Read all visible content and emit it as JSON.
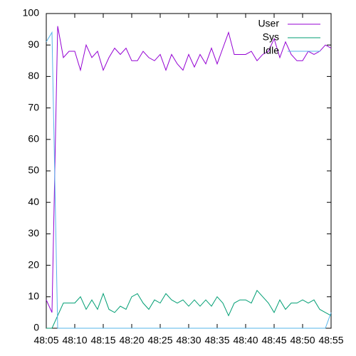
{
  "chart_data": {
    "type": "line",
    "x": [
      5,
      6,
      7,
      8,
      9,
      10,
      11,
      12,
      13,
      14,
      15,
      16,
      17,
      18,
      19,
      20,
      21,
      22,
      23,
      24,
      25,
      26,
      27,
      28,
      29,
      30,
      31,
      32,
      33,
      34,
      35,
      36,
      37,
      38,
      39,
      40,
      41,
      42,
      43,
      44,
      45,
      46,
      47,
      48,
      49,
      50,
      51,
      52,
      53,
      54,
      55
    ],
    "series": [
      {
        "name": "User",
        "color": "#9400d3",
        "values": [
          9,
          5,
          96,
          86,
          88,
          88,
          82,
          90,
          86,
          88,
          82,
          86,
          89,
          87,
          89,
          85,
          85,
          88,
          86,
          85,
          87,
          82,
          87,
          84,
          82,
          87,
          83,
          87,
          84,
          89,
          84,
          89,
          94,
          87,
          87,
          87,
          88,
          85,
          87,
          88,
          92,
          86,
          91,
          87,
          85,
          85,
          88,
          87,
          88,
          90,
          89
        ]
      },
      {
        "name": "Sys",
        "color": "#009e73",
        "values": [
          0,
          0,
          4,
          8,
          8,
          8,
          10,
          6,
          9,
          6,
          11,
          6,
          5,
          7,
          6,
          10,
          11,
          8,
          6,
          9,
          8,
          11,
          9,
          8,
          9,
          7,
          9,
          7,
          9,
          7,
          10,
          8,
          4,
          8,
          9,
          9,
          8,
          12,
          10,
          8,
          5,
          9,
          6,
          8,
          8,
          9,
          8,
          9,
          6,
          5,
          4
        ]
      },
      {
        "name": "Idle",
        "color": "#56b4e9",
        "values": [
          91,
          94,
          0,
          0,
          0,
          0,
          0,
          0,
          0,
          0,
          0,
          0,
          0,
          0,
          0,
          0,
          0,
          0,
          0,
          0,
          0,
          0,
          0,
          0,
          0,
          0,
          0,
          0,
          0,
          0,
          0,
          0,
          0,
          0,
          0,
          0,
          0,
          0,
          0,
          0,
          0,
          0,
          0,
          0,
          0,
          0,
          0,
          0,
          0,
          0,
          5
        ]
      }
    ],
    "xlim": [
      5,
      55
    ],
    "xticks": [
      {
        "value": 5,
        "label": "48:05"
      },
      {
        "value": 10,
        "label": "48:10"
      },
      {
        "value": 15,
        "label": "48:15"
      },
      {
        "value": 20,
        "label": "48:20"
      },
      {
        "value": 25,
        "label": "48:25"
      },
      {
        "value": 30,
        "label": "48:30"
      },
      {
        "value": 35,
        "label": "48:35"
      },
      {
        "value": 40,
        "label": "48:40"
      },
      {
        "value": 45,
        "label": "48:45"
      },
      {
        "value": 50,
        "label": "48:50"
      },
      {
        "value": 55,
        "label": "48:55"
      }
    ],
    "ylim": [
      0,
      100
    ],
    "yticks": [
      0,
      10,
      20,
      30,
      40,
      50,
      60,
      70,
      80,
      90,
      100
    ],
    "legend": "top-right"
  }
}
